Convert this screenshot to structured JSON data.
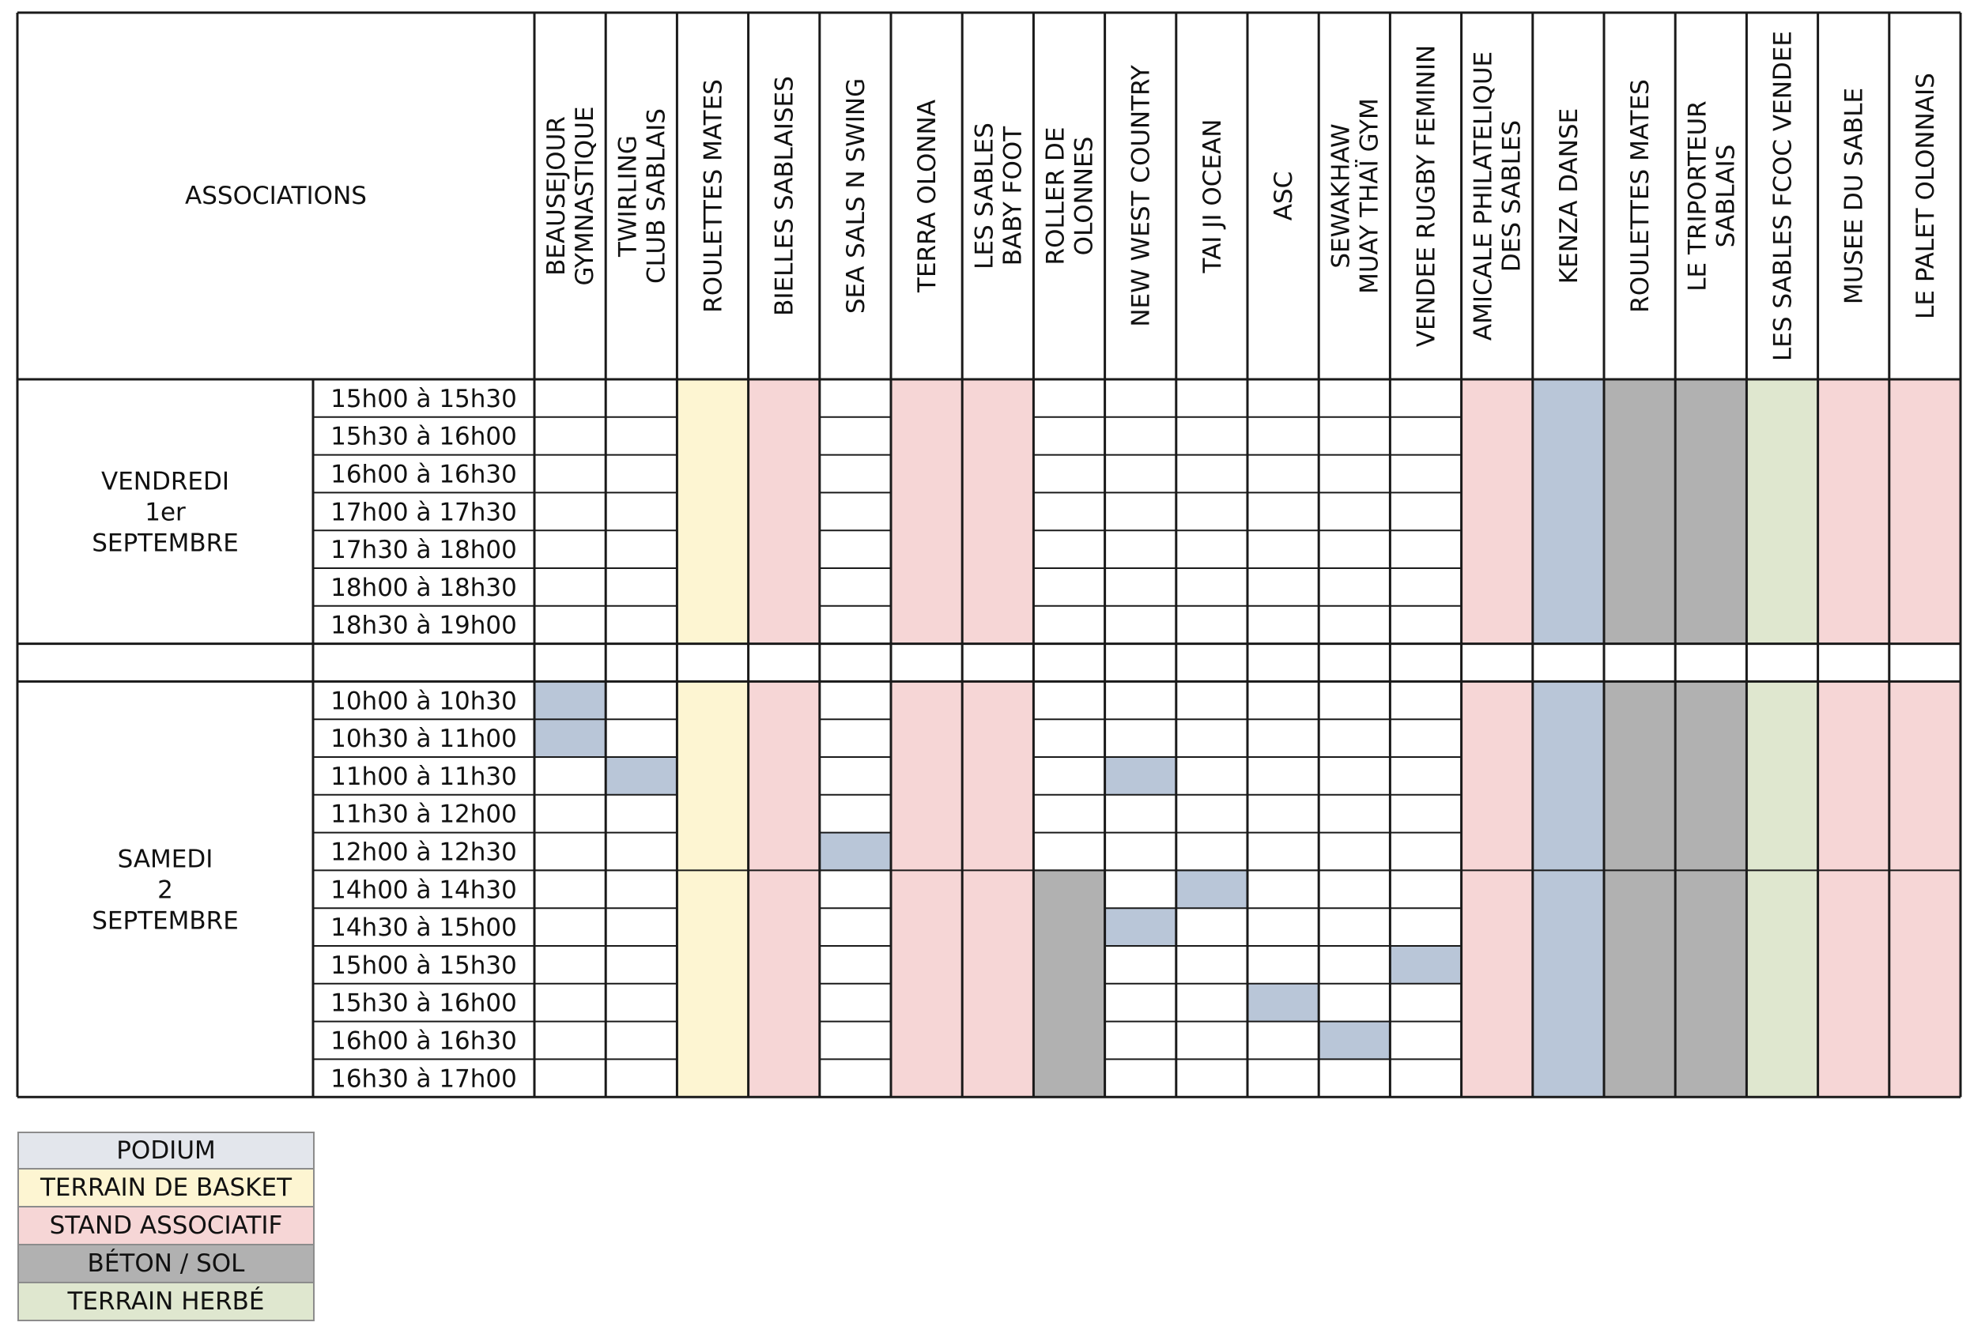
{
  "header_label": "ASSOCIATIONS",
  "columns": [
    [
      "BEAUSEJOUR",
      "GYMNASTIQUE"
    ],
    [
      "TWIRLING",
      "CLUB SABLAIS"
    ],
    [
      "ROULETTES MATES"
    ],
    [
      "BIELLES SABLAISES"
    ],
    [
      "SEA SALS N SWING"
    ],
    [
      "TERRA OLONNA"
    ],
    [
      "LES SABLES",
      "BABY FOOT"
    ],
    [
      "ROLLER DE",
      "OLONNES"
    ],
    [
      "NEW WEST COUNTRY"
    ],
    [
      "TAI JI OCEAN"
    ],
    [
      "ASC"
    ],
    [
      "SEWAKHAW",
      "MUAY THAÏ GYM"
    ],
    [
      "VENDEE RUGBY FEMININ"
    ],
    [
      "AMICALE PHILATELIQUE",
      "DES SABLES"
    ],
    [
      "KENZA DANSE"
    ],
    [
      "ROULETTES MATES"
    ],
    [
      "LE TRIPORTEUR",
      "SABLAIS"
    ],
    [
      "LES SABLES FCOC VENDEE"
    ],
    [
      "MUSEE DU SABLE"
    ],
    [
      "LE PALET OLONNAIS"
    ]
  ],
  "days": [
    {
      "label": [
        "VENDREDI",
        "1er",
        "SEPTEMBRE"
      ],
      "slots": [
        "15h00 à 15h30",
        "15h30 à 16h00",
        "16h00 à 16h30",
        "17h00 à 17h30",
        "17h30 à 18h00",
        "18h00 à 18h30",
        "18h30 à 19h00"
      ]
    },
    {
      "label": [
        "SAMEDI",
        "2",
        "SEPTEMBRE"
      ],
      "slots": [
        "10h00 à 10h30",
        "10h30 à 11h00",
        "11h00 à 11h30",
        "11h30 à 12h00",
        "12h00 à 12h30",
        "14h00 à 14h30",
        "14h30 à 15h00",
        "15h00 à 15h30",
        "15h30 à 16h00",
        "16h00 à 16h30",
        "16h30 à 17h00"
      ]
    }
  ],
  "location_types": [
    {
      "key": "podium",
      "label": "PODIUM",
      "color": "#b9c6d8"
    },
    {
      "key": "basket",
      "label": "TERRAIN DE BASKET",
      "color": "#fdf5d2"
    },
    {
      "key": "stand",
      "label": "STAND ASSOCIATIF",
      "color": "#f6d6d6"
    },
    {
      "key": "beton",
      "label": "BÉTON / SOL",
      "color": "#b1b1b1"
    },
    {
      "key": "herbe",
      "label": "TERRAIN HERBÉ",
      "color": "#dfe7cf"
    }
  ],
  "legend_podium_swatch": "#e3e6ec",
  "assignments": {
    "day1": {
      "spans": [
        {
          "col": 2,
          "type": "basket"
        },
        {
          "col": 3,
          "type": "stand"
        },
        {
          "col": 5,
          "type": "stand"
        },
        {
          "col": 6,
          "type": "stand"
        },
        {
          "col": 13,
          "type": "stand"
        },
        {
          "col": 14,
          "type": "podium"
        },
        {
          "col": 15,
          "type": "beton"
        },
        {
          "col": 16,
          "type": "beton"
        },
        {
          "col": 17,
          "type": "herbe"
        },
        {
          "col": 18,
          "type": "stand"
        },
        {
          "col": 19,
          "type": "stand"
        }
      ]
    },
    "day2": {
      "spans_full": [
        {
          "col": 2,
          "type": "basket"
        },
        {
          "col": 3,
          "type": "stand"
        },
        {
          "col": 5,
          "type": "stand"
        },
        {
          "col": 6,
          "type": "stand"
        },
        {
          "col": 13,
          "type": "stand"
        },
        {
          "col": 14,
          "type": "podium"
        },
        {
          "col": 15,
          "type": "beton"
        },
        {
          "col": 16,
          "type": "beton"
        },
        {
          "col": 17,
          "type": "herbe"
        },
        {
          "col": 18,
          "type": "stand"
        },
        {
          "col": 19,
          "type": "stand"
        }
      ],
      "afternoon_beton_col": 7,
      "podium_cells": [
        {
          "col": 0,
          "slot": 0
        },
        {
          "col": 0,
          "slot": 1
        },
        {
          "col": 1,
          "slot": 2
        },
        {
          "col": 8,
          "slot": 2
        },
        {
          "col": 4,
          "slot": 4
        },
        {
          "col": 9,
          "slot": 5
        },
        {
          "col": 8,
          "slot": 6
        },
        {
          "col": 12,
          "slot": 7
        },
        {
          "col": 10,
          "slot": 8
        },
        {
          "col": 11,
          "slot": 9
        }
      ]
    }
  }
}
